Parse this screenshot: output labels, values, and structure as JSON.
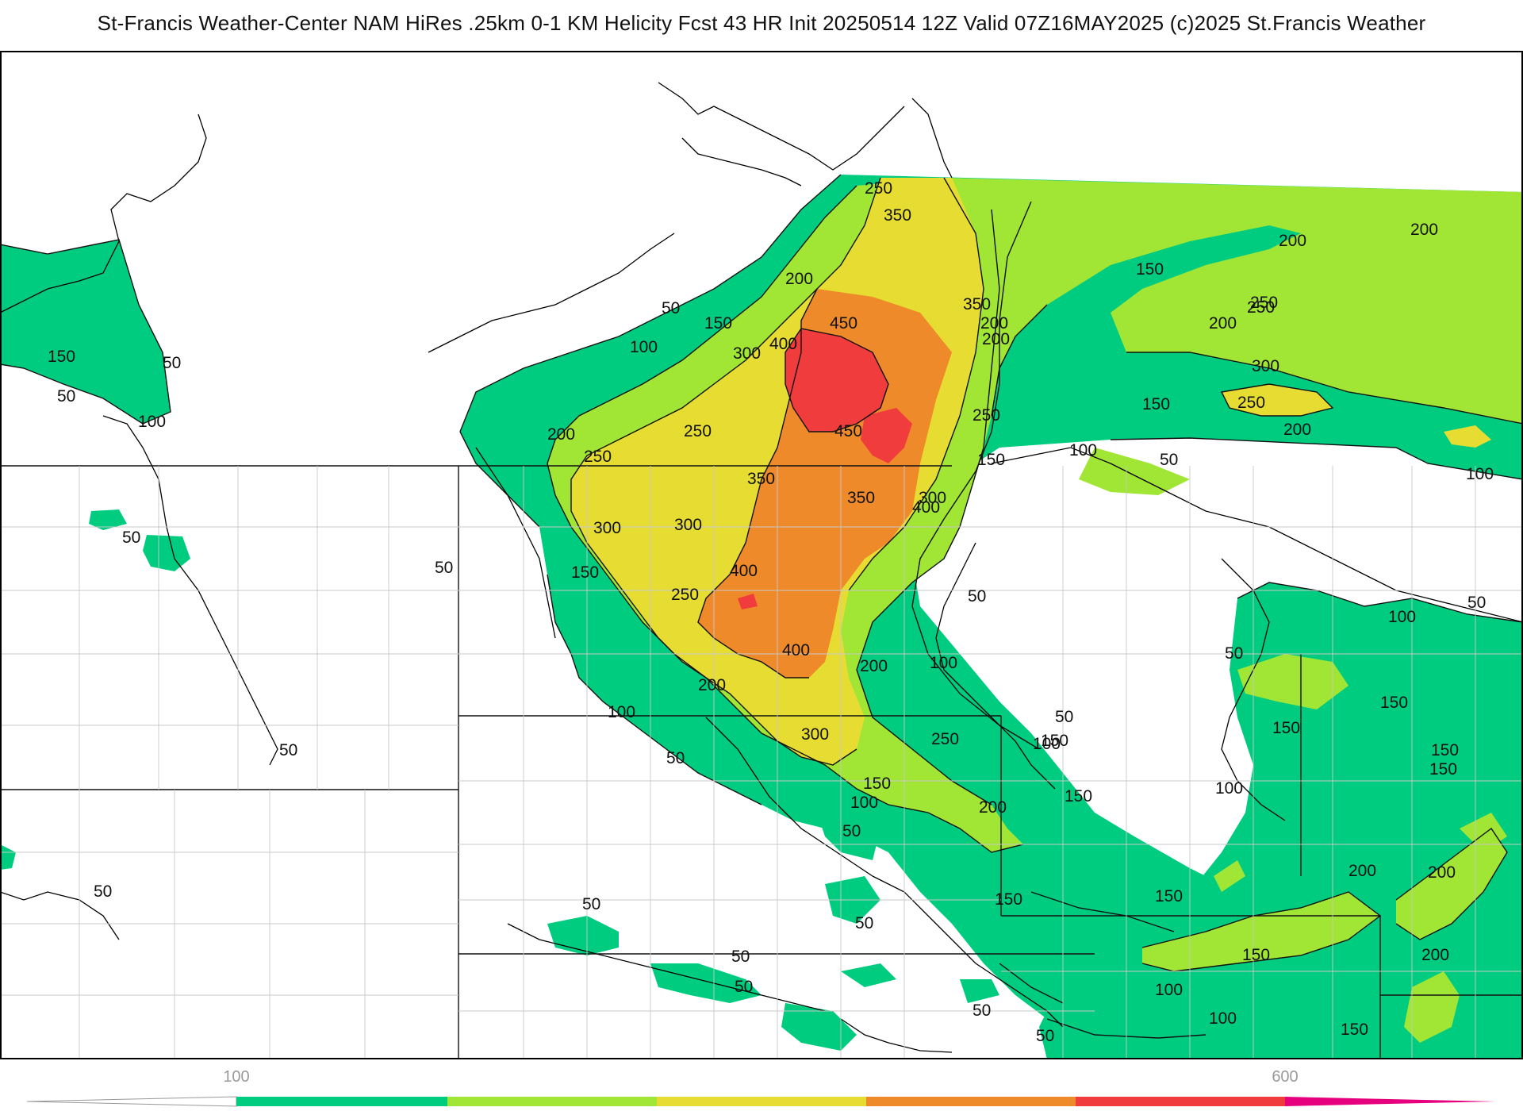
{
  "header": {
    "title": "St-Francis Weather-Center NAM HiRes .25km 0-1 KM Helicity Fcst 43 HR Init 20250514 12Z  Valid 07Z16MAY2025    (c)2025 St.Francis Weather"
  },
  "colors": {
    "c100": "#00cc80",
    "c200": "#a1e634",
    "c300": "#e6dc32",
    "c400": "#ee8a2a",
    "c500": "#f03c3c",
    "c600": "#e6007e",
    "low": "#ffffff"
  },
  "colorbar": {
    "tick_labels": [
      "100",
      "600"
    ]
  },
  "contour_labels": [
    {
      "text": "50"
    },
    {
      "text": "50"
    },
    {
      "text": "50"
    },
    {
      "text": "50"
    },
    {
      "text": "50"
    },
    {
      "text": "50"
    },
    {
      "text": "50"
    },
    {
      "text": "50"
    },
    {
      "text": "50"
    },
    {
      "text": "50"
    },
    {
      "text": "50"
    },
    {
      "text": "50"
    },
    {
      "text": "50"
    },
    {
      "text": "50"
    },
    {
      "text": "50"
    },
    {
      "text": "50"
    },
    {
      "text": "50"
    },
    {
      "text": "50"
    },
    {
      "text": "50"
    },
    {
      "text": "50"
    },
    {
      "text": "100"
    },
    {
      "text": "100"
    },
    {
      "text": "100"
    },
    {
      "text": "100"
    },
    {
      "text": "100"
    },
    {
      "text": "100"
    },
    {
      "text": "100"
    },
    {
      "text": "100"
    },
    {
      "text": "100"
    },
    {
      "text": "100"
    },
    {
      "text": "100"
    },
    {
      "text": "100"
    },
    {
      "text": "150"
    },
    {
      "text": "150"
    },
    {
      "text": "150"
    },
    {
      "text": "150"
    },
    {
      "text": "150"
    },
    {
      "text": "150"
    },
    {
      "text": "150"
    },
    {
      "text": "150"
    },
    {
      "text": "150"
    },
    {
      "text": "150"
    },
    {
      "text": "150"
    },
    {
      "text": "150"
    },
    {
      "text": "150"
    },
    {
      "text": "150"
    },
    {
      "text": "150"
    },
    {
      "text": "150"
    },
    {
      "text": "150"
    },
    {
      "text": "200"
    },
    {
      "text": "200"
    },
    {
      "text": "200"
    },
    {
      "text": "200"
    },
    {
      "text": "200"
    },
    {
      "text": "200"
    },
    {
      "text": "200"
    },
    {
      "text": "200"
    },
    {
      "text": "200"
    },
    {
      "text": "200"
    },
    {
      "text": "200"
    },
    {
      "text": "200"
    },
    {
      "text": "200"
    },
    {
      "text": "200"
    },
    {
      "text": "250"
    },
    {
      "text": "250"
    },
    {
      "text": "250"
    },
    {
      "text": "250"
    },
    {
      "text": "250"
    },
    {
      "text": "250"
    },
    {
      "text": "250"
    },
    {
      "text": "250"
    },
    {
      "text": "250"
    },
    {
      "text": "300"
    },
    {
      "text": "300"
    },
    {
      "text": "300"
    },
    {
      "text": "300"
    },
    {
      "text": "300"
    },
    {
      "text": "300"
    },
    {
      "text": "350"
    },
    {
      "text": "350"
    },
    {
      "text": "350"
    },
    {
      "text": "350"
    },
    {
      "text": "400"
    },
    {
      "text": "400"
    },
    {
      "text": "400"
    },
    {
      "text": "400"
    },
    {
      "text": "450"
    },
    {
      "text": "450"
    }
  ]
}
